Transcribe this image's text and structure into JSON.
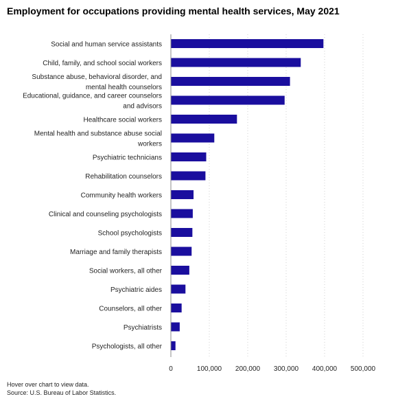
{
  "chart_data": {
    "type": "bar",
    "orientation": "horizontal",
    "title": "Employment for occupations providing mental health services, May 2021",
    "categories": [
      [
        "Social and human service assistants"
      ],
      [
        "Child, family, and school social workers"
      ],
      [
        "Substance abuse, behavioral disorder, and",
        "mental health counselors"
      ],
      [
        "Educational, guidance, and career counselors",
        "and advisors"
      ],
      [
        "Healthcare social workers"
      ],
      [
        "Mental health and substance abuse social",
        "workers"
      ],
      [
        "Psychiatric technicians"
      ],
      [
        "Rehabilitation counselors"
      ],
      [
        "Community health workers"
      ],
      [
        "Clinical and counseling psychologists"
      ],
      [
        "School psychologists"
      ],
      [
        "Marriage and family therapists"
      ],
      [
        "Social workers, all other"
      ],
      [
        "Psychiatric aides"
      ],
      [
        "Counselors, all other"
      ],
      [
        "Psychiatrists"
      ],
      [
        "Psychologists, all other"
      ]
    ],
    "values": [
      397000,
      338000,
      310000,
      296000,
      172000,
      113000,
      92000,
      90000,
      59000,
      57000,
      56000,
      54000,
      48000,
      38000,
      28000,
      23000,
      12000
    ],
    "xlim": [
      0,
      500000
    ],
    "xticks": [
      0,
      100000,
      200000,
      300000,
      400000,
      500000
    ],
    "xtick_labels": [
      "0",
      "100,000",
      "200,000",
      "300,000",
      "400,000",
      "500,000"
    ],
    "grid": "vertical dotted",
    "bar_color": "#1a0e9e"
  },
  "notes": {
    "hover": "Hover over chart to view data.",
    "source": "Source: U.S. Bureau of Labor Statistics."
  }
}
